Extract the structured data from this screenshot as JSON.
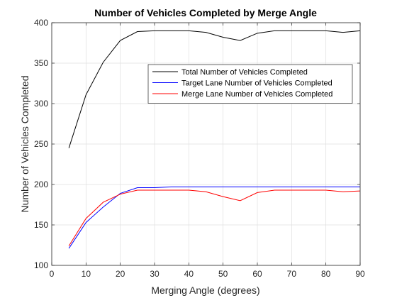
{
  "chart_data": {
    "type": "line",
    "title": "Number of Vehicles Completed by Merge Angle",
    "xlabel": "Merging Angle (degrees)",
    "ylabel": "Number of Vehicles Completed",
    "xlim": [
      0,
      90
    ],
    "ylim": [
      100,
      400
    ],
    "xticks": [
      0,
      10,
      20,
      30,
      40,
      50,
      60,
      70,
      80,
      90
    ],
    "yticks": [
      100,
      150,
      200,
      250,
      300,
      350,
      400
    ],
    "grid": true,
    "legend_position": "top-right",
    "x": [
      5,
      10,
      15,
      20,
      25,
      30,
      35,
      40,
      45,
      50,
      55,
      60,
      65,
      70,
      75,
      80,
      85,
      90
    ],
    "series": [
      {
        "name": "Total Number of Vehicles Completed",
        "color": "#000000",
        "values": [
          245,
          311,
          351,
          378,
          389,
          390,
          390,
          390,
          388,
          382,
          378,
          387,
          390,
          390,
          390,
          390,
          388,
          390
        ]
      },
      {
        "name": "Target Lane Number of Vehicles Completed",
        "color": "#0000ff",
        "values": [
          121,
          153,
          172,
          189,
          196,
          196,
          197,
          197,
          197,
          197,
          197,
          197,
          197,
          197,
          197,
          197,
          197,
          197
        ]
      },
      {
        "name": "Merge Lane Number of Vehicles Completed",
        "color": "#ff0000",
        "values": [
          124,
          158,
          178,
          188,
          193,
          193,
          193,
          193,
          191,
          185,
          180,
          190,
          193,
          193,
          193,
          193,
          191,
          192
        ]
      }
    ]
  }
}
